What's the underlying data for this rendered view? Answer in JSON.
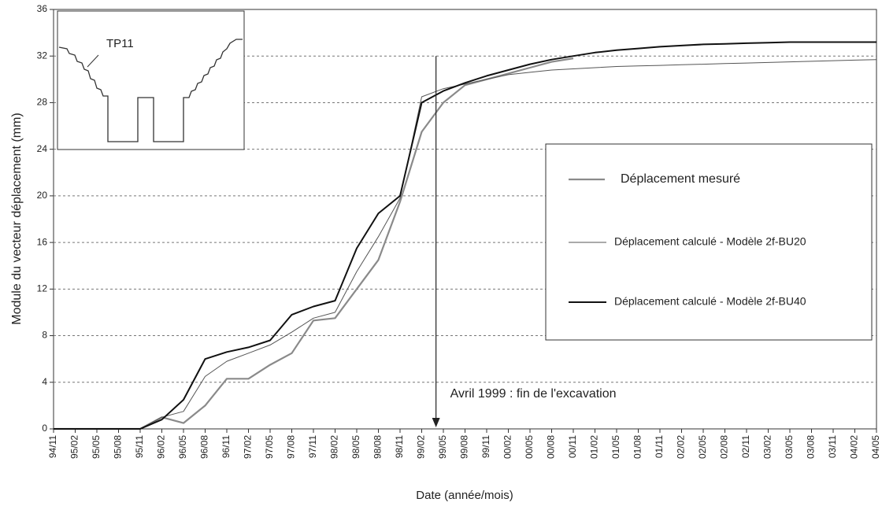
{
  "chart_data": {
    "type": "line",
    "y_label": "Module du vecteur déplacement (mm)",
    "x_label": "Date (année/mois)",
    "annotations": [
      "TP11",
      "Avril 1999 : fin de l'excavation"
    ],
    "categories": [
      "94/11",
      "95/02",
      "95/05",
      "95/08",
      "95/11",
      "96/02",
      "96/05",
      "96/08",
      "96/11",
      "97/02",
      "97/05",
      "97/08",
      "97/11",
      "98/02",
      "98/05",
      "98/08",
      "98/11",
      "99/02",
      "99/05",
      "99/08",
      "99/11",
      "00/02",
      "00/05",
      "00/08",
      "00/11",
      "01/02",
      "01/05",
      "01/08",
      "01/11",
      "02/02",
      "02/05",
      "02/08",
      "02/11",
      "03/02",
      "03/05",
      "03/08",
      "03/11",
      "04/02",
      "04/05"
    ],
    "series": [
      {
        "name": "Déplacement mesuré",
        "color": "#8a8a8a",
        "line_width": 2.2,
        "values": [
          0,
          0,
          0,
          0,
          0,
          1.0,
          0.5,
          2.0,
          4.3,
          4.3,
          5.5,
          6.5,
          9.3,
          9.5,
          12,
          14.5,
          19.5,
          25.5,
          28,
          29.5,
          30,
          30.5,
          31,
          31.5,
          31.8,
          null,
          null,
          null,
          null,
          null,
          null,
          null,
          null,
          null,
          null,
          null,
          null,
          null,
          null
        ]
      },
      {
        "name": "Déplacement calculé - Modèle 2f-BU20",
        "color": "#555555",
        "line_width": 1,
        "values": [
          0,
          0,
          0,
          0,
          0,
          1.0,
          1.5,
          4.5,
          5.8,
          6.5,
          7.2,
          8.3,
          9.5,
          10,
          13.5,
          16.5,
          19.8,
          28.5,
          29.2,
          29.6,
          30.0,
          30.4,
          30.6,
          30.8,
          30.9,
          31.0,
          31.1,
          31.15,
          31.2,
          31.25,
          31.3,
          31.35,
          31.4,
          31.45,
          31.5,
          31.55,
          31.6,
          31.65,
          31.7
        ]
      },
      {
        "name": "Déplacement calculé - Modèle 2f-BU40",
        "color": "#111111",
        "line_width": 2,
        "values": [
          0,
          0,
          0,
          0,
          0,
          0.8,
          2.5,
          6.0,
          6.6,
          7.0,
          7.6,
          9.8,
          10.5,
          11,
          15.5,
          18.5,
          20,
          28,
          29,
          29.7,
          30.3,
          30.8,
          31.3,
          31.7,
          32.0,
          32.3,
          32.5,
          32.65,
          32.8,
          32.9,
          33.0,
          33.05,
          33.1,
          33.15,
          33.2,
          33.2,
          33.2,
          33.2,
          33.2
        ]
      }
    ],
    "ylim": [
      0,
      36
    ],
    "yticks": [
      0,
      4,
      8,
      12,
      16,
      20,
      24,
      28,
      32,
      36
    ],
    "grid": true
  }
}
